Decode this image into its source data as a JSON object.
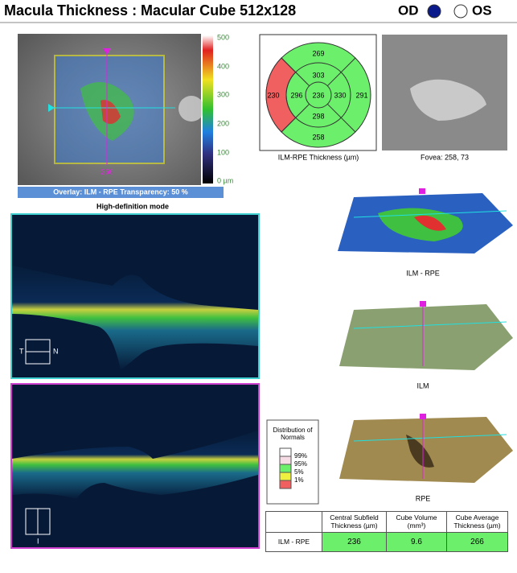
{
  "header": {
    "title": "Macula Thickness : Macular Cube 512x128",
    "od": "OD",
    "os": "OS"
  },
  "fundus": {
    "scale": [
      "500",
      "400",
      "300",
      "200",
      "100",
      "0 µm"
    ],
    "slice": "256",
    "overlay": "Overlay: ILM - RPE  Transparency: 50 %"
  },
  "mode": "High-definition mode",
  "bscan": {
    "temporal": "T",
    "nasal": "N",
    "inferior": "I"
  },
  "etdrs": {
    "outer_top": 269,
    "outer_left": 230,
    "outer_right": 291,
    "outer_bottom": 258,
    "inner_top": 303,
    "inner_left": 296,
    "inner_right": 330,
    "inner_bottom": 298,
    "center": 236,
    "caption": "ILM-RPE Thickness (µm)"
  },
  "fovea": "Fovea: 258, 73",
  "maps": [
    "ILM - RPE",
    "ILM",
    "RPE"
  ],
  "legend": {
    "title": "Distribution of Normals",
    "items": [
      "99%",
      "95%",
      "5%",
      "1%"
    ]
  },
  "table": {
    "headers": [
      "Central Subfield Thickness (µm)",
      "Cube Volume (mm³)",
      "Cube Average Thickness (µm)"
    ],
    "rows": [
      [
        "ILM - RPE",
        236,
        9.6,
        266
      ]
    ]
  }
}
